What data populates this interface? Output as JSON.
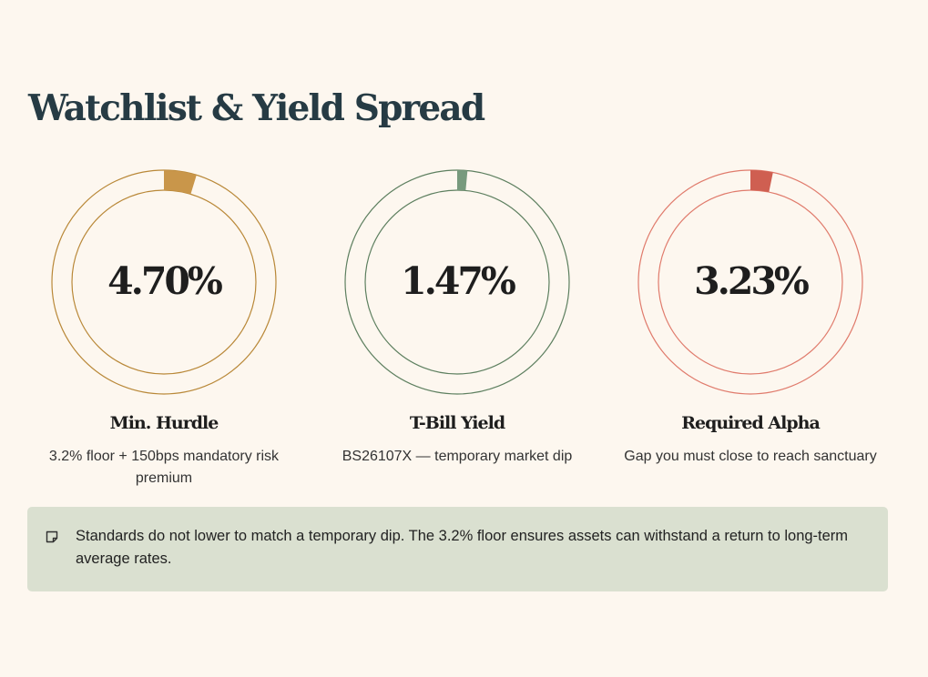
{
  "header": {
    "title": "Watchlist & Yield Spread"
  },
  "metrics": [
    {
      "value": "4.70%",
      "fraction": 0.047,
      "title": "Min. Hurdle",
      "description": "3.2% floor + 150bps mandatory risk premium",
      "color": "#c9964a",
      "ring_color": "#b98838"
    },
    {
      "value": "1.47%",
      "fraction": 0.0147,
      "title": "T-Bill Yield",
      "description": "BS26107X — temporary market dip",
      "color": "#779a7d",
      "ring_color": "#5d7f5f"
    },
    {
      "value": "3.23%",
      "fraction": 0.0323,
      "title": "Required Alpha",
      "description": "Gap you must close to reach sanctuary",
      "color": "#cf5f51",
      "ring_color": "#e07b6c"
    }
  ],
  "notice": {
    "icon": "sticky-note-icon",
    "text": "Standards do not lower to match a temporary dip. The 3.2% floor ensures assets can withstand a return to long-term average rates."
  }
}
